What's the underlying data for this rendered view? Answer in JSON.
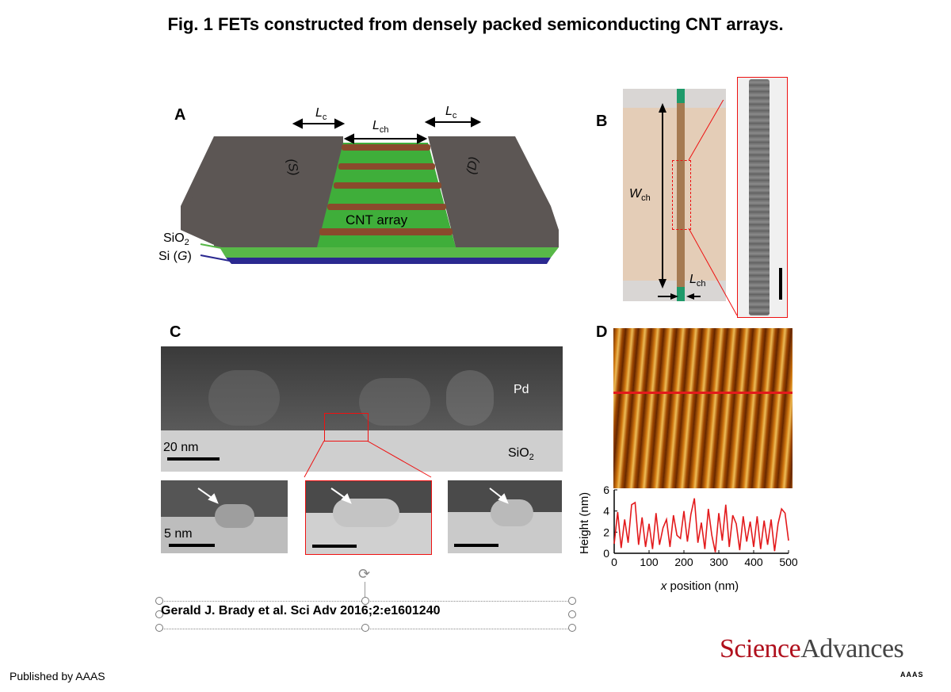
{
  "figure": {
    "title": "Fig. 1 FETs constructed from densely packed semiconducting CNT arrays."
  },
  "panel_a": {
    "letter": "A",
    "lc_left": "L",
    "lc_left_sub": "c",
    "lch": "L",
    "lch_sub": "ch",
    "lc_right": "L",
    "lc_right_sub": "c",
    "source": "(S)",
    "drain": "(D)",
    "cnt_array": "CNT array",
    "sio2": "SiO",
    "sio2_sub": "2",
    "si_gate": "Si (",
    "gate_letter": "G",
    "si_gate_close": ")"
  },
  "panel_b": {
    "letter": "B",
    "wch": "W",
    "wch_sub": "ch",
    "lch": "L",
    "lch_sub": "ch"
  },
  "panel_c": {
    "letter": "C",
    "pd": "Pd",
    "sio2": "SiO",
    "sio2_sub": "2",
    "scale_main": "20 nm",
    "scale_inset": "5 nm"
  },
  "panel_d": {
    "letter": "D",
    "chart_data": {
      "type": "line",
      "xlabel_prefix": "x",
      "xlabel": "position (nm)",
      "ylabel": "Height (nm)",
      "xlim": [
        0,
        500
      ],
      "ylim": [
        0,
        6
      ],
      "xticks": [
        "0",
        "100",
        "200",
        "300",
        "400",
        "500"
      ],
      "yticks": [
        "0",
        "2",
        "4",
        "6"
      ],
      "series_color": "#e31a1c",
      "x": [
        0,
        10,
        20,
        30,
        40,
        50,
        60,
        70,
        80,
        90,
        100,
        110,
        120,
        130,
        140,
        150,
        160,
        170,
        180,
        190,
        200,
        210,
        220,
        230,
        240,
        250,
        260,
        270,
        280,
        290,
        300,
        310,
        320,
        330,
        340,
        350,
        360,
        370,
        380,
        390,
        400,
        410,
        420,
        430,
        440,
        450,
        460,
        470,
        480,
        490,
        500
      ],
      "y": [
        0.9,
        3.9,
        0.5,
        3.2,
        1.0,
        4.6,
        4.8,
        0.8,
        3.4,
        0.6,
        2.8,
        0.4,
        3.8,
        0.8,
        2.4,
        3.2,
        0.6,
        3.6,
        1.7,
        1.4,
        4.0,
        1.1,
        3.7,
        5.2,
        1.0,
        2.9,
        0.4,
        4.2,
        1.7,
        0.1,
        3.8,
        1.2,
        4.6,
        0.6,
        3.6,
        2.8,
        0.3,
        3.5,
        1.1,
        3.0,
        0.6,
        3.5,
        0.4,
        3.1,
        0.8,
        3.2,
        0.2,
        2.8,
        4.2,
        3.8,
        1.2
      ]
    }
  },
  "citation": {
    "text": "Gerald J. Brady et al. Sci Adv 2016;2:e1601240"
  },
  "footer": {
    "published": "Published by AAAS",
    "brand_science": "Science",
    "brand_advances": "Advances",
    "brand_aaas": "AAAS"
  }
}
